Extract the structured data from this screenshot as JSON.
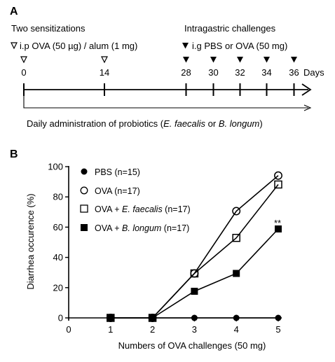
{
  "panelA": {
    "letter": "A",
    "sensitization_title": "Two sensitizations",
    "sensitization_prefix": "i.p OVA (50 µg) / alum (1 mg)",
    "challenge_title": "Intragastric challenges",
    "challenge_prefix": "i.g PBS or OVA (50 mg)",
    "open_marker_days": [
      "0",
      "14"
    ],
    "filled_marker_days": [
      "28",
      "30",
      "32",
      "34",
      "36"
    ],
    "days_label": "Days",
    "probiotics_text_1": "Daily administration of probiotics (",
    "probiotics_ef": "E. faecalis",
    "probiotics_or": " or ",
    "probiotics_bl": "B. longum",
    "probiotics_close": ")"
  },
  "panelB": {
    "letter": "B",
    "significance_marker": "**"
  },
  "chart_data": {
    "type": "line",
    "title": "",
    "xlabel": "Numbers of OVA challenges (50 mg)",
    "ylabel": "Diarrhea occurence (%)",
    "xlim": [
      0,
      5
    ],
    "ylim": [
      0,
      100
    ],
    "x_ticks": [
      "0",
      "1",
      "2",
      "3",
      "4",
      "5"
    ],
    "y_ticks": [
      "0",
      "20",
      "40",
      "60",
      "80",
      "100"
    ],
    "grid": false,
    "legend_placement": "top-left",
    "x": [
      1,
      2,
      3,
      4,
      5
    ],
    "series": [
      {
        "name": "PBS (n=15)",
        "marker": "filled-circle",
        "values": [
          0,
          0,
          0,
          0,
          0
        ]
      },
      {
        "name": "OVA (n=17)",
        "marker": "open-circle",
        "values": [
          0,
          0,
          29.4,
          70.6,
          94.1
        ]
      },
      {
        "name_prefix": "OVA + ",
        "name_italic": "E. faecalis",
        "name_suffix": " (n=17)",
        "marker": "open-square",
        "values": [
          0,
          0,
          29.4,
          52.9,
          88.2
        ]
      },
      {
        "name_prefix": "OVA + ",
        "name_italic": "B. longum",
        "name_suffix": " (n=17)",
        "marker": "filled-square",
        "values": [
          0,
          0,
          17.6,
          29.4,
          58.8
        ]
      }
    ]
  }
}
